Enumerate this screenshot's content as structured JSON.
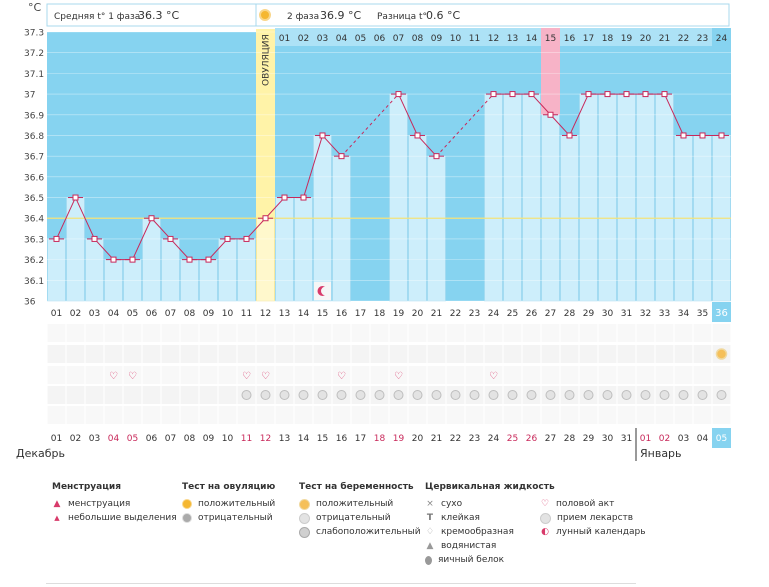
{
  "header": {
    "phase1_label": "Средняя t° 1 фаза",
    "phase1_value": "36.3 °C",
    "phase2_label": "2 фаза",
    "phase2_value": "36.9 °C",
    "diff_label": "Разница t°",
    "diff_value": "0.6 °C"
  },
  "unit_label": "°C",
  "ovulation_label": "ОВУЛЯЦИЯ",
  "chart_data": {
    "type": "line",
    "title": "",
    "ylabel": "°C",
    "ylim": [
      36,
      37.3
    ],
    "yticks": [
      "36",
      "36.1",
      "36.2",
      "36.3",
      "36.4",
      "36.5",
      "36.6",
      "36.7",
      "36.8",
      "36.9",
      "37",
      "37.1",
      "37.2",
      "37.3"
    ],
    "coverline": 36.4,
    "ovulation_day_index": 11,
    "highlighted_day": "15",
    "cycle_days": [
      "01",
      "02",
      "03",
      "04",
      "05",
      "06",
      "07",
      "08",
      "09",
      "10",
      "11",
      "12",
      "13",
      "14",
      "15",
      "16",
      "17",
      "18",
      "19",
      "20",
      "21",
      "22",
      "23",
      "24",
      "25",
      "26",
      "27",
      "28",
      "29",
      "30",
      "31",
      "32",
      "33",
      "34",
      "35",
      "36"
    ],
    "phase2_days": [
      "01",
      "02",
      "03",
      "04",
      "05",
      "06",
      "07",
      "08",
      "09",
      "10",
      "11",
      "12",
      "13",
      "14",
      "15",
      "16",
      "17",
      "18",
      "19",
      "20",
      "21",
      "22",
      "23",
      "24"
    ],
    "temperatures": [
      36.3,
      36.5,
      36.3,
      36.2,
      36.2,
      36.4,
      36.3,
      36.2,
      36.2,
      36.3,
      36.3,
      36.4,
      36.5,
      36.5,
      36.8,
      36.7,
      null,
      null,
      37.0,
      36.8,
      36.7,
      null,
      null,
      37.0,
      37.0,
      37.0,
      36.9,
      36.8,
      37.0,
      37.0,
      37.0,
      37.0,
      37.0,
      36.8,
      36.8,
      36.8
    ],
    "dates": [
      "01",
      "02",
      "03",
      "04",
      "05",
      "06",
      "07",
      "08",
      "09",
      "10",
      "11",
      "12",
      "13",
      "14",
      "15",
      "16",
      "17",
      "18",
      "19",
      "20",
      "21",
      "22",
      "23",
      "24",
      "25",
      "26",
      "27",
      "28",
      "29",
      "30",
      "31",
      "01",
      "02",
      "03",
      "04",
      "05"
    ],
    "date_red_indices": [
      3,
      4,
      10,
      11,
      17,
      18,
      24,
      25,
      31,
      32
    ],
    "current_index": 35,
    "month_labels": [
      "Декабрь",
      "Январь"
    ],
    "heart_days": [
      3,
      4,
      10,
      11,
      15,
      18,
      23
    ],
    "pregnancy_test_days": [
      35
    ],
    "pill_start_index": 10,
    "moon_day_index": 14
  },
  "legend": {
    "menstruation": {
      "title": "Менструация",
      "items": [
        "менструация",
        "небольшие выделения"
      ]
    },
    "ovulation_test": {
      "title": "Тест на овуляцию",
      "items": [
        "положительный",
        "отрицательный"
      ]
    },
    "pregnancy_test": {
      "title": "Тест на беременность",
      "items": [
        "положительный",
        "отрицательный",
        "слабоположительный"
      ]
    },
    "cervical": {
      "title": "Цервикальная жидкость",
      "items": [
        "сухо",
        "клейкая",
        "кремообразная",
        "водянистая",
        "яичный белок"
      ]
    },
    "other": {
      "items": [
        "половой акт",
        "прием лекарств",
        "лунный календарь"
      ]
    }
  },
  "colors": {
    "bg_blue": "#86d3f0",
    "bar_blue": "#cdeefb",
    "bar_border": "#9fd8ef",
    "line": "#c8285a",
    "ovulation": "#fff3a8",
    "highlight": "#f7b3c7",
    "current": "#86d3f0"
  }
}
